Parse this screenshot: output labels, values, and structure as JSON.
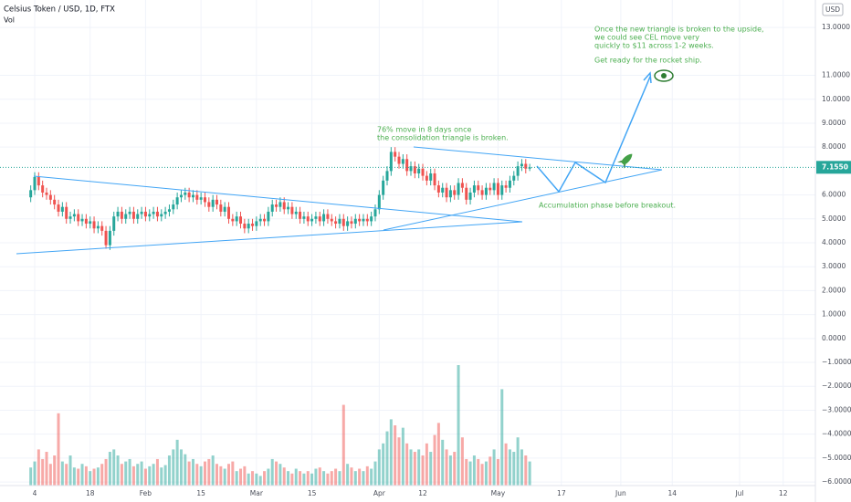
{
  "chart_data": {
    "type": "candlestick",
    "title": "Celsius Token / USD, 1D, FTX",
    "volume_label": "Vol",
    "currency": "USD",
    "open": [
      5.9,
      6.2,
      6.75,
      6.4,
      6.1,
      6.0,
      5.8,
      5.6,
      5.3,
      5.5,
      5.0,
      5.1,
      5.2,
      4.9,
      5.0,
      4.8,
      4.9,
      4.6,
      4.7,
      4.5,
      3.9,
      4.5,
      5.1,
      5.3,
      5.0,
      5.2,
      5.3,
      5.0,
      5.2,
      5.3,
      5.1,
      5.2,
      5.3,
      5.1,
      5.2,
      5.3,
      5.4,
      5.6,
      5.9,
      6.0,
      6.1,
      5.9,
      6.0,
      5.8,
      5.9,
      5.7,
      5.5,
      5.8,
      5.6,
      5.3,
      5.5,
      5.0,
      4.9,
      5.1,
      4.8,
      4.6,
      4.8,
      4.7,
      4.9,
      5.0,
      4.9,
      5.3,
      5.6,
      5.5,
      5.7,
      5.4,
      5.5,
      5.2,
      5.3,
      5.0,
      5.1,
      4.9,
      5.0,
      5.1,
      4.9,
      5.2,
      5.0,
      4.9,
      4.8,
      5.0,
      4.7,
      4.9,
      4.8,
      5.0,
      4.9,
      5.0,
      4.9,
      5.1,
      5.4,
      6.0,
      6.6,
      7.0,
      7.8,
      7.6,
      7.3,
      7.5,
      7.0,
      7.2,
      6.9,
      7.1,
      6.8,
      6.6,
      6.9,
      6.4,
      6.1,
      6.3,
      5.9,
      6.2,
      6.0,
      6.5,
      6.3,
      5.8,
      6.1,
      6.4,
      6.2,
      6.0,
      6.3,
      6.2,
      6.5,
      6.0,
      6.4,
      6.3,
      6.6,
      6.8,
      7.2,
      7.3,
      7.1
    ],
    "high": [
      6.4,
      6.95,
      6.95,
      6.6,
      6.3,
      6.2,
      6.0,
      5.8,
      5.7,
      5.7,
      5.3,
      5.4,
      5.4,
      5.2,
      5.2,
      5.1,
      5.1,
      4.9,
      4.9,
      4.7,
      4.7,
      5.3,
      5.5,
      5.5,
      5.4,
      5.5,
      5.5,
      5.4,
      5.5,
      5.5,
      5.4,
      5.5,
      5.5,
      5.4,
      5.5,
      5.6,
      5.8,
      6.1,
      6.2,
      6.3,
      6.3,
      6.2,
      6.2,
      6.1,
      6.1,
      5.9,
      6.0,
      6.0,
      5.8,
      5.7,
      5.7,
      5.2,
      5.3,
      5.3,
      5.0,
      5.0,
      5.0,
      5.1,
      5.2,
      5.2,
      5.5,
      5.8,
      5.8,
      5.9,
      5.9,
      5.7,
      5.7,
      5.5,
      5.5,
      5.3,
      5.3,
      5.2,
      5.3,
      5.3,
      5.4,
      5.4,
      5.2,
      5.1,
      5.2,
      5.2,
      5.1,
      5.1,
      5.2,
      5.2,
      5.2,
      5.2,
      5.3,
      5.6,
      6.2,
      6.8,
      7.2,
      8.0,
      8.0,
      7.8,
      7.7,
      7.7,
      7.4,
      7.4,
      7.3,
      7.3,
      7.0,
      7.1,
      7.1,
      6.6,
      6.5,
      6.5,
      6.4,
      6.4,
      6.7,
      6.7,
      6.5,
      6.3,
      6.6,
      6.6,
      6.4,
      6.5,
      6.5,
      6.7,
      6.7,
      6.6,
      6.6,
      6.8,
      7.0,
      7.4,
      7.5,
      7.5,
      7.3
    ],
    "low": [
      5.7,
      6.0,
      6.2,
      5.9,
      5.8,
      5.6,
      5.4,
      5.1,
      5.1,
      4.8,
      4.8,
      4.9,
      4.7,
      4.7,
      4.6,
      4.6,
      4.4,
      4.4,
      4.3,
      3.75,
      3.7,
      4.3,
      4.9,
      4.8,
      4.8,
      5.0,
      4.8,
      4.8,
      5.0,
      4.9,
      4.9,
      5.0,
      4.9,
      4.9,
      5.0,
      5.1,
      5.2,
      5.4,
      5.7,
      5.8,
      5.7,
      5.7,
      5.6,
      5.6,
      5.5,
      5.3,
      5.3,
      5.4,
      5.1,
      5.1,
      4.8,
      4.7,
      4.7,
      4.6,
      4.4,
      4.4,
      4.5,
      4.5,
      4.7,
      4.7,
      4.7,
      5.1,
      5.3,
      5.3,
      5.2,
      5.2,
      5.0,
      5.0,
      4.8,
      4.8,
      4.7,
      4.7,
      4.8,
      4.7,
      4.7,
      4.8,
      4.7,
      4.6,
      4.6,
      4.5,
      4.5,
      4.6,
      4.6,
      4.7,
      4.7,
      4.7,
      4.7,
      4.9,
      5.2,
      5.8,
      6.4,
      6.8,
      7.4,
      7.1,
      7.1,
      6.8,
      6.8,
      6.7,
      6.7,
      6.6,
      6.4,
      6.4,
      6.2,
      5.9,
      5.9,
      5.7,
      5.7,
      5.8,
      5.8,
      6.1,
      5.6,
      5.6,
      5.9,
      6.0,
      5.8,
      5.8,
      6.0,
      6.0,
      5.8,
      5.8,
      6.1,
      6.1,
      6.4,
      6.6,
      7.0,
      6.9,
      7.0
    ],
    "close": [
      6.2,
      6.75,
      6.4,
      6.1,
      6.0,
      5.8,
      5.6,
      5.3,
      5.5,
      5.0,
      5.1,
      5.2,
      4.9,
      5.0,
      4.8,
      4.9,
      4.6,
      4.7,
      4.5,
      3.9,
      4.5,
      5.1,
      5.3,
      5.0,
      5.2,
      5.3,
      5.0,
      5.2,
      5.3,
      5.1,
      5.2,
      5.3,
      5.1,
      5.2,
      5.3,
      5.4,
      5.6,
      5.9,
      6.0,
      6.1,
      5.9,
      6.0,
      5.8,
      5.9,
      5.7,
      5.5,
      5.8,
      5.6,
      5.3,
      5.5,
      5.0,
      4.9,
      5.1,
      4.8,
      4.6,
      4.8,
      4.7,
      4.9,
      5.0,
      4.9,
      5.3,
      5.6,
      5.5,
      5.7,
      5.4,
      5.5,
      5.2,
      5.3,
      5.0,
      5.1,
      4.9,
      5.0,
      5.1,
      4.9,
      5.2,
      5.0,
      4.9,
      4.8,
      5.0,
      4.7,
      4.9,
      4.8,
      5.0,
      4.9,
      5.0,
      4.9,
      5.1,
      5.4,
      6.0,
      6.6,
      7.0,
      7.8,
      7.6,
      7.3,
      7.5,
      7.0,
      7.2,
      6.9,
      7.1,
      6.8,
      6.6,
      6.9,
      6.4,
      6.1,
      6.3,
      5.9,
      6.2,
      6.0,
      6.5,
      6.3,
      5.8,
      6.1,
      6.4,
      6.2,
      6.0,
      6.3,
      6.2,
      6.5,
      6.0,
      6.4,
      6.3,
      6.6,
      6.8,
      7.2,
      7.3,
      7.1,
      7.155
    ],
    "volume": [
      15,
      20,
      30,
      22,
      28,
      18,
      25,
      60,
      20,
      18,
      25,
      15,
      14,
      18,
      16,
      12,
      14,
      15,
      18,
      22,
      28,
      30,
      25,
      18,
      20,
      22,
      16,
      18,
      20,
      14,
      16,
      18,
      22,
      15,
      17,
      25,
      30,
      38,
      30,
      26,
      20,
      22,
      18,
      16,
      20,
      22,
      25,
      18,
      16,
      14,
      18,
      20,
      12,
      14,
      16,
      10,
      12,
      10,
      8,
      12,
      14,
      22,
      20,
      18,
      15,
      12,
      10,
      14,
      12,
      10,
      12,
      10,
      14,
      15,
      12,
      10,
      12,
      14,
      12,
      67,
      18,
      15,
      12,
      14,
      12,
      16,
      14,
      20,
      30,
      35,
      45,
      55,
      50,
      40,
      48,
      35,
      30,
      28,
      30,
      25,
      35,
      28,
      42,
      52,
      38,
      30,
      25,
      28,
      100,
      40,
      22,
      20,
      25,
      22,
      18,
      20,
      24,
      30,
      22,
      80,
      35,
      30,
      28,
      40,
      30,
      25,
      20
    ],
    "vlim": [
      0,
      100
    ],
    "up_color": "#26a69a",
    "down_color": "#ef5350",
    "xlim": [
      -7.76,
      198.14
    ],
    "xticks": [
      {
        "value": 1,
        "label": "4"
      },
      {
        "value": 15,
        "label": "18"
      },
      {
        "value": 29,
        "label": "Feb"
      },
      {
        "value": 43,
        "label": "15"
      },
      {
        "value": 57,
        "label": "Mar"
      },
      {
        "value": 71,
        "label": "15"
      },
      {
        "value": 88,
        "label": "Apr"
      },
      {
        "value": 99,
        "label": "12"
      },
      {
        "value": 118,
        "label": "May"
      },
      {
        "value": 134,
        "label": "17"
      },
      {
        "value": 149,
        "label": "Jun"
      },
      {
        "value": 162,
        "label": "14"
      },
      {
        "value": 179,
        "label": "Jul"
      },
      {
        "value": 190,
        "label": "12"
      }
    ],
    "ylim": [
      -6.15,
      14.15
    ],
    "yticks": [
      {
        "value": 13,
        "label": "13.0000"
      },
      {
        "value": 11,
        "label": "11.0000"
      },
      {
        "value": 10,
        "label": "10.0000"
      },
      {
        "value": 9,
        "label": "9.0000"
      },
      {
        "value": 8,
        "label": "8.0000"
      },
      {
        "value": 6,
        "label": "6.0000"
      },
      {
        "value": 5,
        "label": "5.0000"
      },
      {
        "value": 4,
        "label": "4.0000"
      },
      {
        "value": 3,
        "label": "3.0000"
      },
      {
        "value": 2,
        "label": "2.0000"
      },
      {
        "value": 1,
        "label": "1.0000"
      },
      {
        "value": 0,
        "label": "0.0000"
      },
      {
        "value": -1,
        "label": "−1.0000"
      },
      {
        "value": -2,
        "label": "−2.0000"
      },
      {
        "value": -3,
        "label": "−3.0000"
      },
      {
        "value": -4,
        "label": "−4.0000"
      },
      {
        "value": -5,
        "label": "−5.0000"
      },
      {
        "value": -6,
        "label": "−6.0000"
      }
    ],
    "grid": true,
    "last_price": {
      "value": 7.155,
      "label": "7.1550"
    },
    "annotations": [
      "76% move in 8 days once",
      "the consolidation triangle is broken.",
      "Accumulation phase before breakout.",
      "Once the new triangle is broken to the upside,",
      "we could see CEL move very",
      "quickly to $11 across 1-2 weeks.",
      "Get ready for the rocket ship."
    ]
  }
}
